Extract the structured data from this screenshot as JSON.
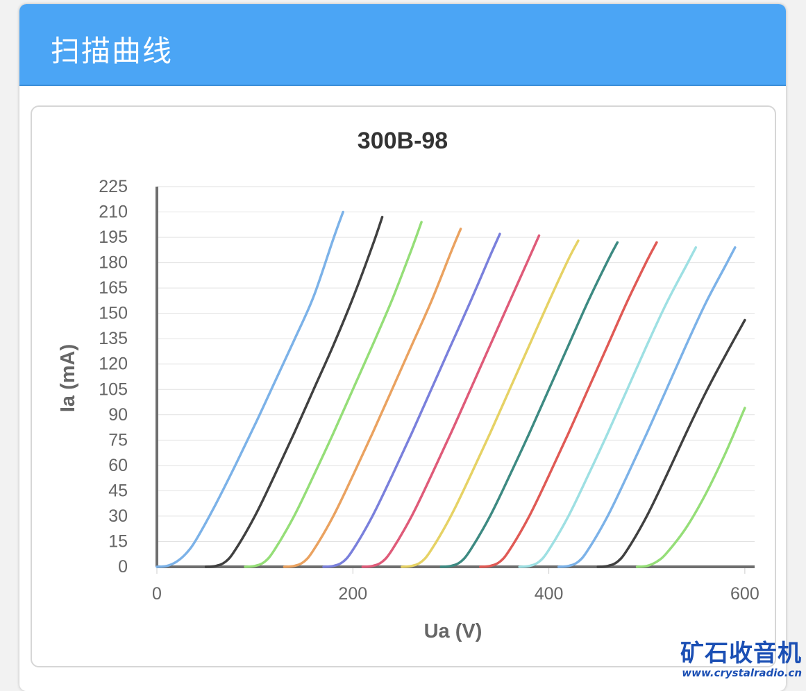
{
  "panel": {
    "title": "扫描曲线"
  },
  "watermark": {
    "name": "矿石收音机",
    "url": "www.crystalradio.cn"
  },
  "chart_data": {
    "type": "line",
    "title": "300B-98",
    "xlabel": "Ua (V)",
    "ylabel": "Ia (mA)",
    "xlim": [
      0,
      610
    ],
    "ylim": [
      0,
      225
    ],
    "xticks": [
      0,
      200,
      400,
      600
    ],
    "yticks": [
      0,
      15,
      30,
      45,
      60,
      75,
      90,
      105,
      120,
      135,
      150,
      165,
      180,
      195,
      210,
      225
    ],
    "grid": true,
    "legend": "none",
    "series": [
      {
        "color": "#7cb2e8",
        "points": [
          [
            0,
            0
          ],
          [
            10,
            0.5
          ],
          [
            20,
            3
          ],
          [
            30,
            8
          ],
          [
            40,
            16
          ],
          [
            60,
            37
          ],
          [
            80,
            60
          ],
          [
            100,
            84
          ],
          [
            120,
            109
          ],
          [
            140,
            134
          ],
          [
            160,
            160
          ],
          [
            180,
            194
          ],
          [
            190,
            210
          ]
        ]
      },
      {
        "color": "#404040",
        "points": [
          [
            50,
            0
          ],
          [
            60,
            0.5
          ],
          [
            70,
            3
          ],
          [
            80,
            10
          ],
          [
            100,
            30
          ],
          [
            120,
            54
          ],
          [
            140,
            79
          ],
          [
            160,
            105
          ],
          [
            180,
            131
          ],
          [
            200,
            159
          ],
          [
            220,
            190
          ],
          [
            230,
            207
          ]
        ]
      },
      {
        "color": "#95de78",
        "points": [
          [
            90,
            0
          ],
          [
            100,
            0.5
          ],
          [
            110,
            3
          ],
          [
            120,
            10
          ],
          [
            140,
            30
          ],
          [
            160,
            54
          ],
          [
            180,
            79
          ],
          [
            200,
            105
          ],
          [
            220,
            131
          ],
          [
            240,
            158
          ],
          [
            260,
            188
          ],
          [
            270,
            204
          ]
        ]
      },
      {
        "color": "#eaa260",
        "points": [
          [
            130,
            0
          ],
          [
            140,
            0.5
          ],
          [
            150,
            3
          ],
          [
            160,
            10
          ],
          [
            180,
            30
          ],
          [
            200,
            54
          ],
          [
            220,
            79
          ],
          [
            240,
            105
          ],
          [
            260,
            131
          ],
          [
            280,
            157
          ],
          [
            300,
            186
          ],
          [
            310,
            200
          ]
        ]
      },
      {
        "color": "#7a80dc",
        "points": [
          [
            170,
            0
          ],
          [
            180,
            0.5
          ],
          [
            190,
            3
          ],
          [
            200,
            10
          ],
          [
            220,
            30
          ],
          [
            240,
            54
          ],
          [
            260,
            79
          ],
          [
            280,
            105
          ],
          [
            300,
            131
          ],
          [
            320,
            157
          ],
          [
            340,
            184
          ],
          [
            350,
            197
          ]
        ]
      },
      {
        "color": "#df5b79",
        "points": [
          [
            210,
            0
          ],
          [
            220,
            0.5
          ],
          [
            230,
            3
          ],
          [
            240,
            10
          ],
          [
            260,
            30
          ],
          [
            280,
            54
          ],
          [
            300,
            79
          ],
          [
            320,
            105
          ],
          [
            340,
            131
          ],
          [
            360,
            157
          ],
          [
            380,
            183
          ],
          [
            390,
            196
          ]
        ]
      },
      {
        "color": "#e6d265",
        "points": [
          [
            250,
            0
          ],
          [
            260,
            0.5
          ],
          [
            270,
            3
          ],
          [
            280,
            10
          ],
          [
            300,
            30
          ],
          [
            320,
            54
          ],
          [
            340,
            79
          ],
          [
            360,
            105
          ],
          [
            380,
            131
          ],
          [
            400,
            157
          ],
          [
            420,
            182
          ],
          [
            430,
            193
          ]
        ]
      },
      {
        "color": "#3d8a82",
        "points": [
          [
            290,
            0
          ],
          [
            300,
            0.5
          ],
          [
            310,
            3
          ],
          [
            320,
            10
          ],
          [
            340,
            30
          ],
          [
            360,
            54
          ],
          [
            380,
            79
          ],
          [
            400,
            105
          ],
          [
            420,
            131
          ],
          [
            440,
            157
          ],
          [
            460,
            181
          ],
          [
            470,
            192
          ]
        ]
      },
      {
        "color": "#e05a55",
        "points": [
          [
            330,
            0
          ],
          [
            340,
            0.5
          ],
          [
            350,
            3
          ],
          [
            360,
            10
          ],
          [
            380,
            30
          ],
          [
            400,
            54
          ],
          [
            420,
            79
          ],
          [
            440,
            105
          ],
          [
            460,
            131
          ],
          [
            480,
            157
          ],
          [
            500,
            181
          ],
          [
            510,
            192
          ]
        ]
      },
      {
        "color": "#9ee0e3",
        "points": [
          [
            370,
            0
          ],
          [
            380,
            0.5
          ],
          [
            390,
            3
          ],
          [
            400,
            10
          ],
          [
            420,
            30
          ],
          [
            440,
            54
          ],
          [
            460,
            79
          ],
          [
            480,
            105
          ],
          [
            500,
            131
          ],
          [
            520,
            156
          ],
          [
            540,
            178
          ],
          [
            550,
            189
          ]
        ]
      },
      {
        "color": "#7cb2e8",
        "points": [
          [
            410,
            0
          ],
          [
            420,
            0.5
          ],
          [
            430,
            3
          ],
          [
            440,
            10
          ],
          [
            460,
            30
          ],
          [
            480,
            54
          ],
          [
            500,
            79
          ],
          [
            520,
            105
          ],
          [
            540,
            131
          ],
          [
            560,
            156
          ],
          [
            580,
            178
          ],
          [
            590,
            189
          ]
        ]
      },
      {
        "color": "#404040",
        "points": [
          [
            450,
            0
          ],
          [
            460,
            0.5
          ],
          [
            470,
            3
          ],
          [
            480,
            10
          ],
          [
            500,
            30
          ],
          [
            520,
            54
          ],
          [
            540,
            79
          ],
          [
            560,
            103
          ],
          [
            580,
            125
          ],
          [
            600,
            146
          ]
        ]
      },
      {
        "color": "#95de78",
        "points": [
          [
            490,
            0
          ],
          [
            500,
            0.5
          ],
          [
            510,
            3
          ],
          [
            520,
            8
          ],
          [
            540,
            23
          ],
          [
            560,
            43
          ],
          [
            580,
            67
          ],
          [
            600,
            94
          ]
        ]
      }
    ]
  }
}
